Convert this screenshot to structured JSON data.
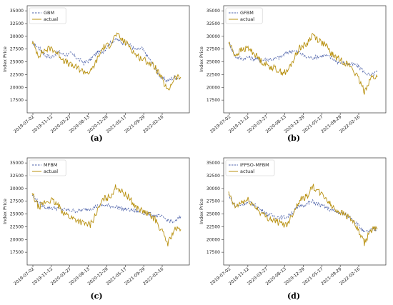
{
  "colors": {
    "model": "#4a5fa8",
    "actual": "#b8900f"
  },
  "chart_data": [
    {
      "type": "line",
      "panel_label": "(a)",
      "ylabel": "Index Price",
      "ylim": [
        15000,
        36000
      ],
      "yticks": [
        "17500",
        "20000",
        "22500",
        "25000",
        "27500",
        "30000",
        "32500",
        "35000"
      ],
      "ytick_values": [
        17500,
        20000,
        22500,
        25000,
        27500,
        30000,
        32500,
        35000
      ],
      "xticks": [
        "2019-07-02",
        "2019-11-12",
        "2020-03-27",
        "2020-08-13",
        "2020-12-29",
        "2021-05-17",
        "2021-09-29",
        "2022-02-16"
      ],
      "legend": "top-left",
      "series": [
        {
          "name": "GBM",
          "style": "dashed",
          "values": [
            28700,
            27800,
            26300,
            25900,
            27000,
            26400,
            26600,
            25700,
            24800,
            25400,
            26800,
            27100,
            28600,
            29400,
            28800,
            28500,
            27300,
            27600,
            25800,
            23800,
            21800,
            21300,
            22000,
            21700
          ]
        },
        {
          "name": "actual",
          "style": "solid",
          "values": [
            28900,
            26300,
            27300,
            27700,
            26600,
            25200,
            24300,
            23800,
            23100,
            22900,
            25300,
            27900,
            28300,
            30400,
            29200,
            28200,
            26400,
            25600,
            24900,
            24000,
            21800,
            19200,
            21900,
            22000
          ]
        }
      ]
    },
    {
      "type": "line",
      "panel_label": "(b)",
      "ylabel": "Index Price",
      "ylim": [
        15000,
        36000
      ],
      "yticks": [
        "17500",
        "20000",
        "22500",
        "25000",
        "27500",
        "30000",
        "32500",
        "35000"
      ],
      "ytick_values": [
        17500,
        20000,
        22500,
        25000,
        27500,
        30000,
        32500,
        35000
      ],
      "xticks": [
        "2019-07-02",
        "2019-11-12",
        "2020-03-27",
        "2020-08-13",
        "2020-12-29",
        "2021-05-17",
        "2021-09-29",
        "2022-02-16"
      ],
      "legend": "top-left",
      "series": [
        {
          "name": "GFBM",
          "style": "dashed",
          "values": [
            28800,
            26100,
            25600,
            25900,
            25600,
            25300,
            25500,
            25600,
            25900,
            26800,
            27200,
            26800,
            25900,
            25800,
            26100,
            26300,
            25700,
            24900,
            24700,
            24500,
            24200,
            23000,
            22300,
            23100
          ]
        },
        {
          "name": "actual",
          "style": "solid",
          "values": [
            28900,
            26300,
            27300,
            27700,
            26600,
            25200,
            24300,
            23800,
            23100,
            22900,
            25300,
            27900,
            28300,
            30400,
            29200,
            28200,
            26400,
            25600,
            24900,
            24000,
            21800,
            19200,
            21900,
            22000
          ]
        }
      ]
    },
    {
      "type": "line",
      "panel_label": "(c)",
      "ylabel": "Index Price",
      "ylim": [
        15000,
        36000
      ],
      "yticks": [
        "17500",
        "20000",
        "22500",
        "25000",
        "27500",
        "30000",
        "32500",
        "35000"
      ],
      "ytick_values": [
        17500,
        20000,
        22500,
        25000,
        27500,
        30000,
        32500,
        35000
      ],
      "xticks": [
        "2019-07-02",
        "2019-11-12",
        "2020-03-27",
        "2020-08-13",
        "2020-12-29",
        "2021-05-17",
        "2021-09-29",
        "2022-02-16"
      ],
      "legend": "top-left",
      "series": [
        {
          "name": "MFBM",
          "style": "dashed",
          "values": [
            28700,
            27200,
            26300,
            26200,
            26100,
            25800,
            25700,
            25600,
            25800,
            26100,
            26500,
            26700,
            26600,
            26400,
            26000,
            25800,
            25600,
            25300,
            25000,
            24700,
            24400,
            23800,
            23300,
            24500
          ]
        },
        {
          "name": "actual",
          "style": "solid",
          "values": [
            28900,
            26300,
            27300,
            27700,
            26600,
            25200,
            24300,
            23800,
            23100,
            22900,
            25300,
            27900,
            28300,
            30400,
            29200,
            28200,
            26400,
            25600,
            24900,
            24000,
            21800,
            19200,
            21900,
            22000
          ]
        }
      ]
    },
    {
      "type": "line",
      "panel_label": "(d)",
      "ylabel": "Index Price",
      "ylim": [
        15000,
        36000
      ],
      "yticks": [
        "17500",
        "20000",
        "22500",
        "25000",
        "27500",
        "30000",
        "32500",
        "35000"
      ],
      "ytick_values": [
        17500,
        20000,
        22500,
        25000,
        27500,
        30000,
        32500,
        35000
      ],
      "xticks": [
        "2019-07-02",
        "2019-11-12",
        "2020-03-27",
        "2020-08-13",
        "2020-12-29",
        "2021-05-17",
        "2021-09-29",
        "2022-02-16"
      ],
      "legend": "top-left",
      "series": [
        {
          "name": "IFPSO-MFBM",
          "style": "dashed",
          "values": [
            28800,
            26500,
            26900,
            27300,
            26800,
            25800,
            25000,
            24600,
            24300,
            24400,
            25500,
            26600,
            26900,
            27400,
            26800,
            26300,
            25700,
            25300,
            24900,
            24300,
            22900,
            21300,
            21800,
            22100
          ]
        },
        {
          "name": "actual",
          "style": "solid",
          "values": [
            28900,
            26300,
            27300,
            27700,
            26600,
            25200,
            24300,
            23800,
            23100,
            22900,
            25300,
            27900,
            28300,
            30400,
            29200,
            28200,
            26400,
            25600,
            24900,
            24000,
            21800,
            19200,
            21900,
            22000
          ]
        }
      ]
    }
  ]
}
